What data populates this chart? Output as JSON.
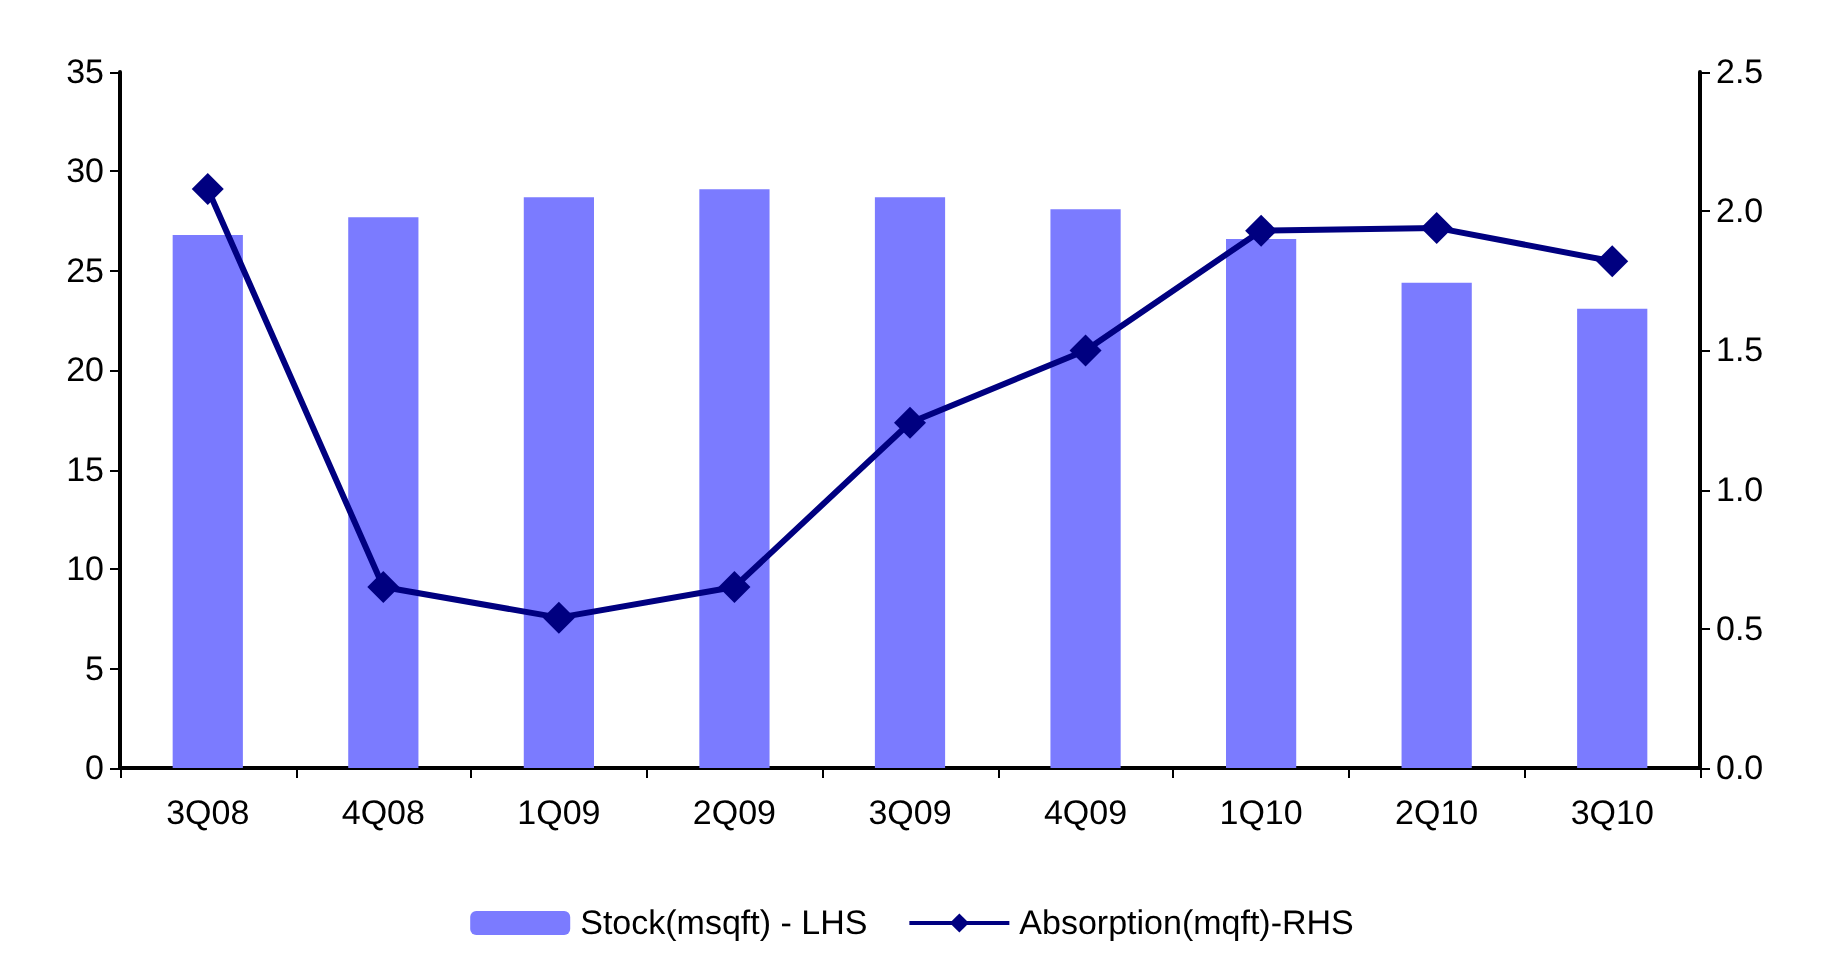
{
  "chart_data": {
    "type": "bar",
    "categories": [
      "3Q08",
      "4Q08",
      "1Q09",
      "2Q09",
      "3Q09",
      "4Q09",
      "1Q10",
      "2Q10",
      "3Q10"
    ],
    "series": [
      {
        "name": "Stock(msqft) - LHS",
        "color": "#7b7bff",
        "values": [
          26.8,
          27.7,
          28.7,
          29.1,
          28.7,
          28.1,
          26.6,
          24.4,
          23.1
        ]
      },
      {
        "name": "Absorption(mqft)-RHS",
        "type": "line",
        "axis": "y2",
        "color": "#000080",
        "marker": "diamond",
        "values": [
          2.08,
          0.65,
          0.54,
          0.65,
          1.24,
          1.5,
          1.93,
          1.94,
          1.82
        ]
      }
    ],
    "ylim": [
      0,
      35
    ],
    "yticks": [
      0,
      5,
      10,
      15,
      20,
      25,
      30,
      35
    ],
    "y2lim": [
      0,
      2.5
    ],
    "y2ticks": [
      {
        "value": 0,
        "label": "0.0"
      },
      {
        "value": 0.5,
        "label": "0.5"
      },
      {
        "value": 1,
        "label": "1.0"
      },
      {
        "value": 1.5,
        "label": "1.5"
      },
      {
        "value": 2,
        "label": "2.0"
      },
      {
        "value": 2.5,
        "label": "2.5"
      }
    ],
    "grid": false,
    "legend": "bottom"
  }
}
